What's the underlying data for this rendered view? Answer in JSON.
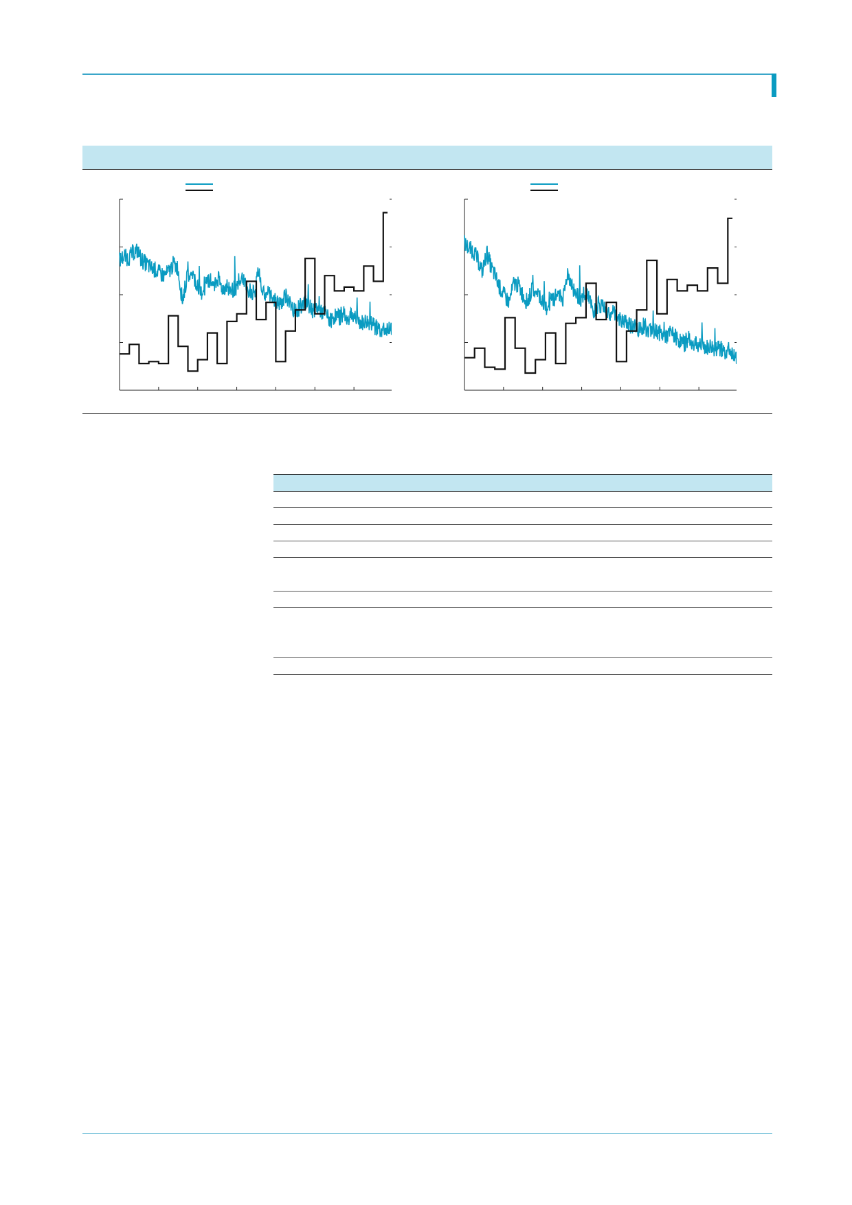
{
  "colors": {
    "accent": "#0a9bc1",
    "band": "#c2e6f1",
    "series_step": "#111111"
  },
  "chart_data": [
    {
      "type": "line",
      "grid": false,
      "legend": "top-left",
      "series": [
        {
          "values": [
            0.68,
            0.7,
            0.69,
            0.72,
            0.73,
            0.68,
            0.66,
            0.64,
            0.63,
            0.61,
            0.6,
            0.62,
            0.66,
            0.64,
            0.47,
            0.58,
            0.6,
            0.56,
            0.5,
            0.54,
            0.58,
            0.56,
            0.58,
            0.53,
            0.55,
            0.52,
            0.54,
            0.6,
            0.55,
            0.52,
            0.5,
            0.62,
            0.5,
            0.52,
            0.48,
            0.46,
            0.44,
            0.5,
            0.45,
            0.42,
            0.43,
            0.46,
            0.44,
            0.42,
            0.43,
            0.41,
            0.4,
            0.36,
            0.39,
            0.38,
            0.4,
            0.38,
            0.39,
            0.37,
            0.35,
            0.36,
            0.35,
            0.33,
            0.32,
            0.31,
            0.33,
            0.34
          ]
        },
        {
          "steps": [
            0.19,
            0.24,
            0.14,
            0.15,
            0.14,
            0.39,
            0.23,
            0.1,
            0.16,
            0.3,
            0.14,
            0.36,
            0.4,
            0.57,
            0.37,
            0.46,
            0.15,
            0.31,
            0.42,
            0.69,
            0.4,
            0.6,
            0.52,
            0.54,
            0.52,
            0.65,
            0.57,
            0.93
          ]
        }
      ]
    },
    {
      "type": "line",
      "grid": false,
      "legend": "top-left",
      "series": [
        {
          "values": [
            0.77,
            0.74,
            0.73,
            0.68,
            0.62,
            0.72,
            0.64,
            0.59,
            0.53,
            0.49,
            0.46,
            0.56,
            0.55,
            0.5,
            0.46,
            0.52,
            0.5,
            0.48,
            0.42,
            0.46,
            0.48,
            0.52,
            0.47,
            0.62,
            0.55,
            0.5,
            0.48,
            0.52,
            0.46,
            0.41,
            0.45,
            0.43,
            0.39,
            0.42,
            0.38,
            0.36,
            0.35,
            0.34,
            0.33,
            0.32,
            0.34,
            0.31,
            0.3,
            0.31,
            0.29,
            0.28,
            0.3,
            0.28,
            0.26,
            0.24,
            0.27,
            0.25,
            0.23,
            0.24,
            0.22,
            0.23,
            0.21,
            0.22,
            0.2,
            0.21,
            0.19,
            0.18
          ]
        },
        {
          "steps": [
            0.17,
            0.22,
            0.12,
            0.11,
            0.38,
            0.22,
            0.09,
            0.16,
            0.3,
            0.14,
            0.35,
            0.38,
            0.56,
            0.37,
            0.46,
            0.15,
            0.31,
            0.42,
            0.68,
            0.4,
            0.58,
            0.52,
            0.55,
            0.52,
            0.64,
            0.56,
            0.9
          ]
        }
      ]
    }
  ]
}
